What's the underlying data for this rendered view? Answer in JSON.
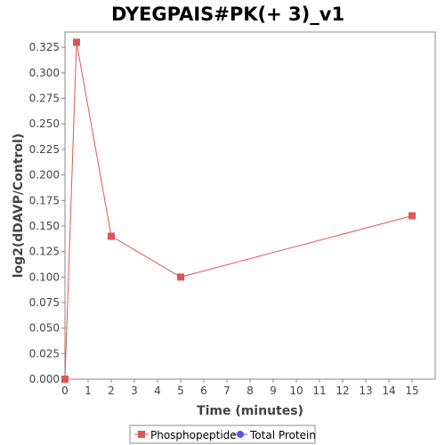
{
  "chart_data": {
    "type": "line",
    "title": "DYEGPAIS#PK(+ 3)_v1",
    "xlabel": "Time (minutes)",
    "ylabel": "log2(dDAVP/Control)",
    "xlim": [
      0,
      16
    ],
    "ylim": [
      0,
      0.34
    ],
    "x_ticks": [
      0,
      1,
      2,
      3,
      4,
      5,
      6,
      7,
      8,
      9,
      10,
      11,
      12,
      13,
      14,
      15
    ],
    "y_ticks": [
      0.0,
      0.025,
      0.05,
      0.075,
      0.1,
      0.125,
      0.15,
      0.175,
      0.2,
      0.225,
      0.25,
      0.275,
      0.3,
      0.325
    ],
    "grid": false,
    "legend_position": "bottom",
    "series": [
      {
        "name": "Phosphopeptide",
        "color": "#e05555",
        "marker": "square",
        "x": [
          0,
          0.5,
          2,
          5,
          15
        ],
        "values": [
          0.0,
          0.33,
          0.14,
          0.1,
          0.16
        ]
      },
      {
        "name": "Total Protein",
        "color": "#5555e8",
        "marker": "circle",
        "x": [],
        "values": []
      }
    ]
  }
}
